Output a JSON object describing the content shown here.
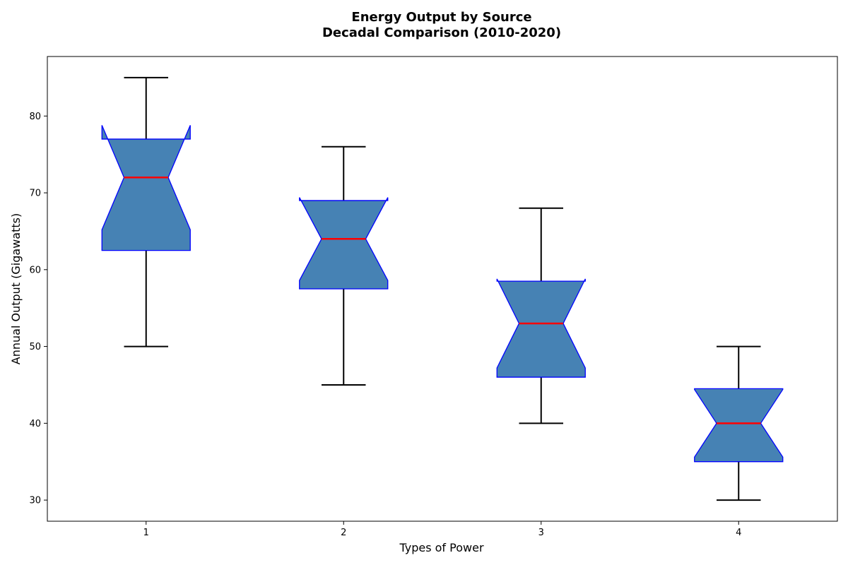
{
  "chart_data": {
    "type": "boxplot",
    "title_line1": "Energy Output by Source",
    "title_line2": "Decadal Comparison (2010-2020)",
    "xlabel": "Types of Power",
    "ylabel": "Annual Output (Gigawatts)",
    "categories": [
      "1",
      "2",
      "3",
      "4"
    ],
    "ylim": [
      27.25,
      87.75
    ],
    "yticks": [
      "30",
      "40",
      "50",
      "60",
      "70",
      "80"
    ],
    "grid": false,
    "notched": true,
    "boxes": [
      {
        "whisker_low": 50,
        "q1": 62.5,
        "median": 72,
        "q3": 77,
        "whisker_high": 85,
        "notch_low": 65.2,
        "notch_high": 78.8
      },
      {
        "whisker_low": 45,
        "q1": 57.5,
        "median": 64,
        "q3": 69,
        "whisker_high": 76,
        "notch_low": 58.6,
        "notch_high": 69.4
      },
      {
        "whisker_low": 40,
        "q1": 46,
        "median": 53,
        "q3": 58.5,
        "whisker_high": 68,
        "notch_low": 47.2,
        "notch_high": 58.8
      },
      {
        "whisker_low": 30,
        "q1": 35,
        "median": 40,
        "q3": 44.5,
        "whisker_high": 50,
        "notch_low": 35.6,
        "notch_high": 44.4
      }
    ],
    "colors": {
      "box_fill": "#4682b4",
      "box_edge": "#0000ff",
      "median": "#ff0000",
      "whisker": "#000000"
    }
  }
}
